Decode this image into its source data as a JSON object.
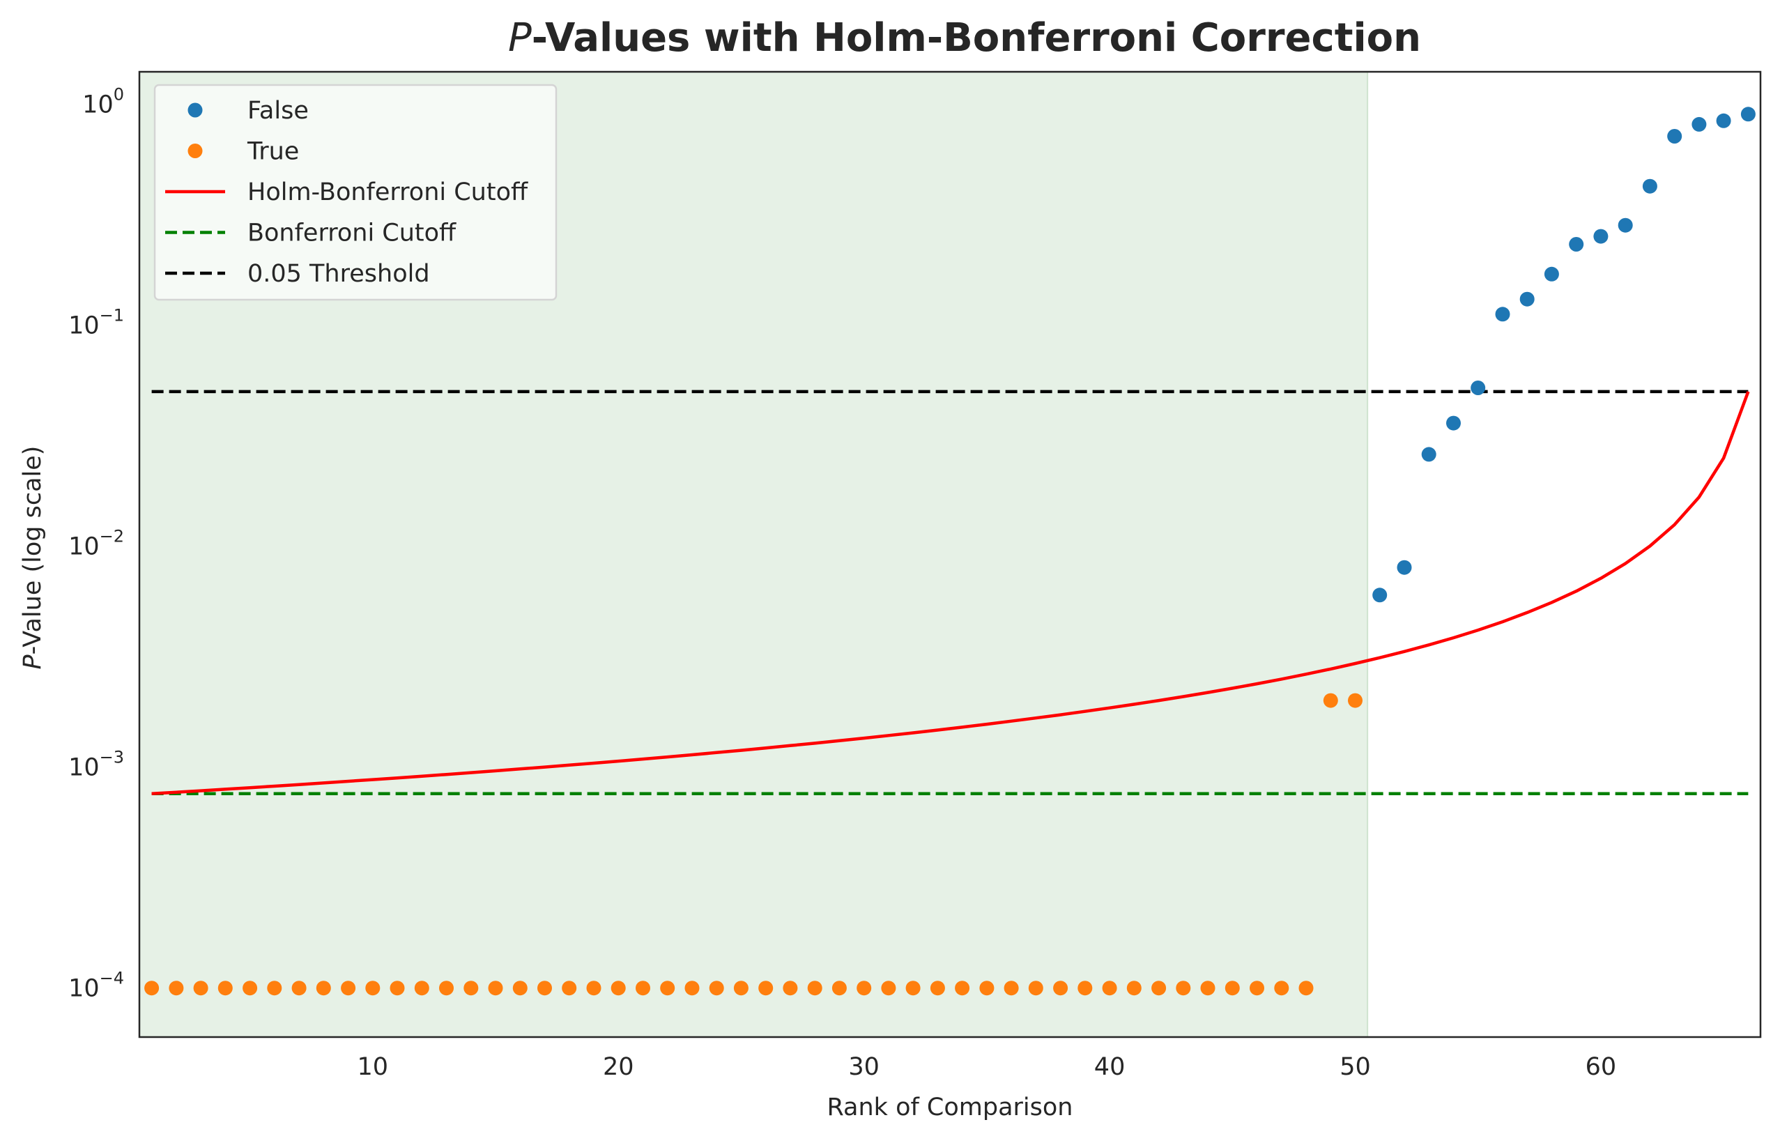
{
  "chart_data": {
    "type": "scatter",
    "title": "P-Values with Holm-Bonferroni Correction",
    "title_italic_prefix": "P",
    "title_rest": "-Values with Holm-Bonferroni Correction",
    "xlabel": "Rank of Comparison",
    "ylabel": "P-Value (log scale)",
    "ylabel_italic_prefix": "P",
    "ylabel_rest": "-Value (log scale)",
    "yscale": "log",
    "xlim": [
      0.5,
      66.5
    ],
    "ylim": [
      6e-05,
      1.4
    ],
    "x_ticks": [
      10,
      20,
      30,
      40,
      50,
      60
    ],
    "y_ticks": [
      {
        "value": 0.0001,
        "base": "10",
        "exp": "−4"
      },
      {
        "value": 0.001,
        "base": "10",
        "exp": "−3"
      },
      {
        "value": 0.01,
        "base": "10",
        "exp": "−2"
      },
      {
        "value": 0.1,
        "base": "10",
        "exp": "−1"
      },
      {
        "value": 1,
        "base": "10",
        "exp": "0"
      }
    ],
    "grid": false,
    "legend_position": "top-left",
    "shaded_region": {
      "x_range": [
        0.5,
        50.5
      ],
      "color": "#e6f1e6"
    },
    "series": [
      {
        "name": "False",
        "kind": "points",
        "color": "#1f77b4",
        "points": [
          [
            51,
            0.006
          ],
          [
            52,
            0.008
          ],
          [
            53,
            0.026
          ],
          [
            54,
            0.036
          ],
          [
            55,
            0.052
          ],
          [
            56,
            0.112
          ],
          [
            57,
            0.131
          ],
          [
            58,
            0.17
          ],
          [
            59,
            0.232
          ],
          [
            60,
            0.252
          ],
          [
            61,
            0.283
          ],
          [
            62,
            0.425
          ],
          [
            63,
            0.715
          ],
          [
            64,
            0.81
          ],
          [
            65,
            0.84
          ],
          [
            66,
            0.9
          ]
        ]
      },
      {
        "name": "True",
        "kind": "points",
        "color": "#ff7f0e",
        "points": [
          [
            1,
            0.0001
          ],
          [
            2,
            0.0001
          ],
          [
            3,
            0.0001
          ],
          [
            4,
            0.0001
          ],
          [
            5,
            0.0001
          ],
          [
            6,
            0.0001
          ],
          [
            7,
            0.0001
          ],
          [
            8,
            0.0001
          ],
          [
            9,
            0.0001
          ],
          [
            10,
            0.0001
          ],
          [
            11,
            0.0001
          ],
          [
            12,
            0.0001
          ],
          [
            13,
            0.0001
          ],
          [
            14,
            0.0001
          ],
          [
            15,
            0.0001
          ],
          [
            16,
            0.0001
          ],
          [
            17,
            0.0001
          ],
          [
            18,
            0.0001
          ],
          [
            19,
            0.0001
          ],
          [
            20,
            0.0001
          ],
          [
            21,
            0.0001
          ],
          [
            22,
            0.0001
          ],
          [
            23,
            0.0001
          ],
          [
            24,
            0.0001
          ],
          [
            25,
            0.0001
          ],
          [
            26,
            0.0001
          ],
          [
            27,
            0.0001
          ],
          [
            28,
            0.0001
          ],
          [
            29,
            0.0001
          ],
          [
            30,
            0.0001
          ],
          [
            31,
            0.0001
          ],
          [
            32,
            0.0001
          ],
          [
            33,
            0.0001
          ],
          [
            34,
            0.0001
          ],
          [
            35,
            0.0001
          ],
          [
            36,
            0.0001
          ],
          [
            37,
            0.0001
          ],
          [
            38,
            0.0001
          ],
          [
            39,
            0.0001
          ],
          [
            40,
            0.0001
          ],
          [
            41,
            0.0001
          ],
          [
            42,
            0.0001
          ],
          [
            43,
            0.0001
          ],
          [
            44,
            0.0001
          ],
          [
            45,
            0.0001
          ],
          [
            46,
            0.0001
          ],
          [
            47,
            0.0001
          ],
          [
            48,
            0.0001
          ],
          [
            49,
            0.002
          ],
          [
            50,
            0.002
          ]
        ]
      },
      {
        "name": "Holm-Bonferroni Cutoff",
        "kind": "holm_line",
        "color": "#ff0000",
        "n": 66,
        "alpha": 0.05,
        "x_range": [
          1,
          66
        ]
      },
      {
        "name": "Bonferroni Cutoff",
        "kind": "hline",
        "color": "#008000",
        "dashed": true,
        "y": 0.000758,
        "x_range": [
          1,
          66
        ]
      },
      {
        "name": "0.05 Threshold",
        "kind": "hline",
        "color": "#000000",
        "dashed": true,
        "y": 0.05,
        "x_range": [
          1,
          66
        ]
      }
    ]
  }
}
